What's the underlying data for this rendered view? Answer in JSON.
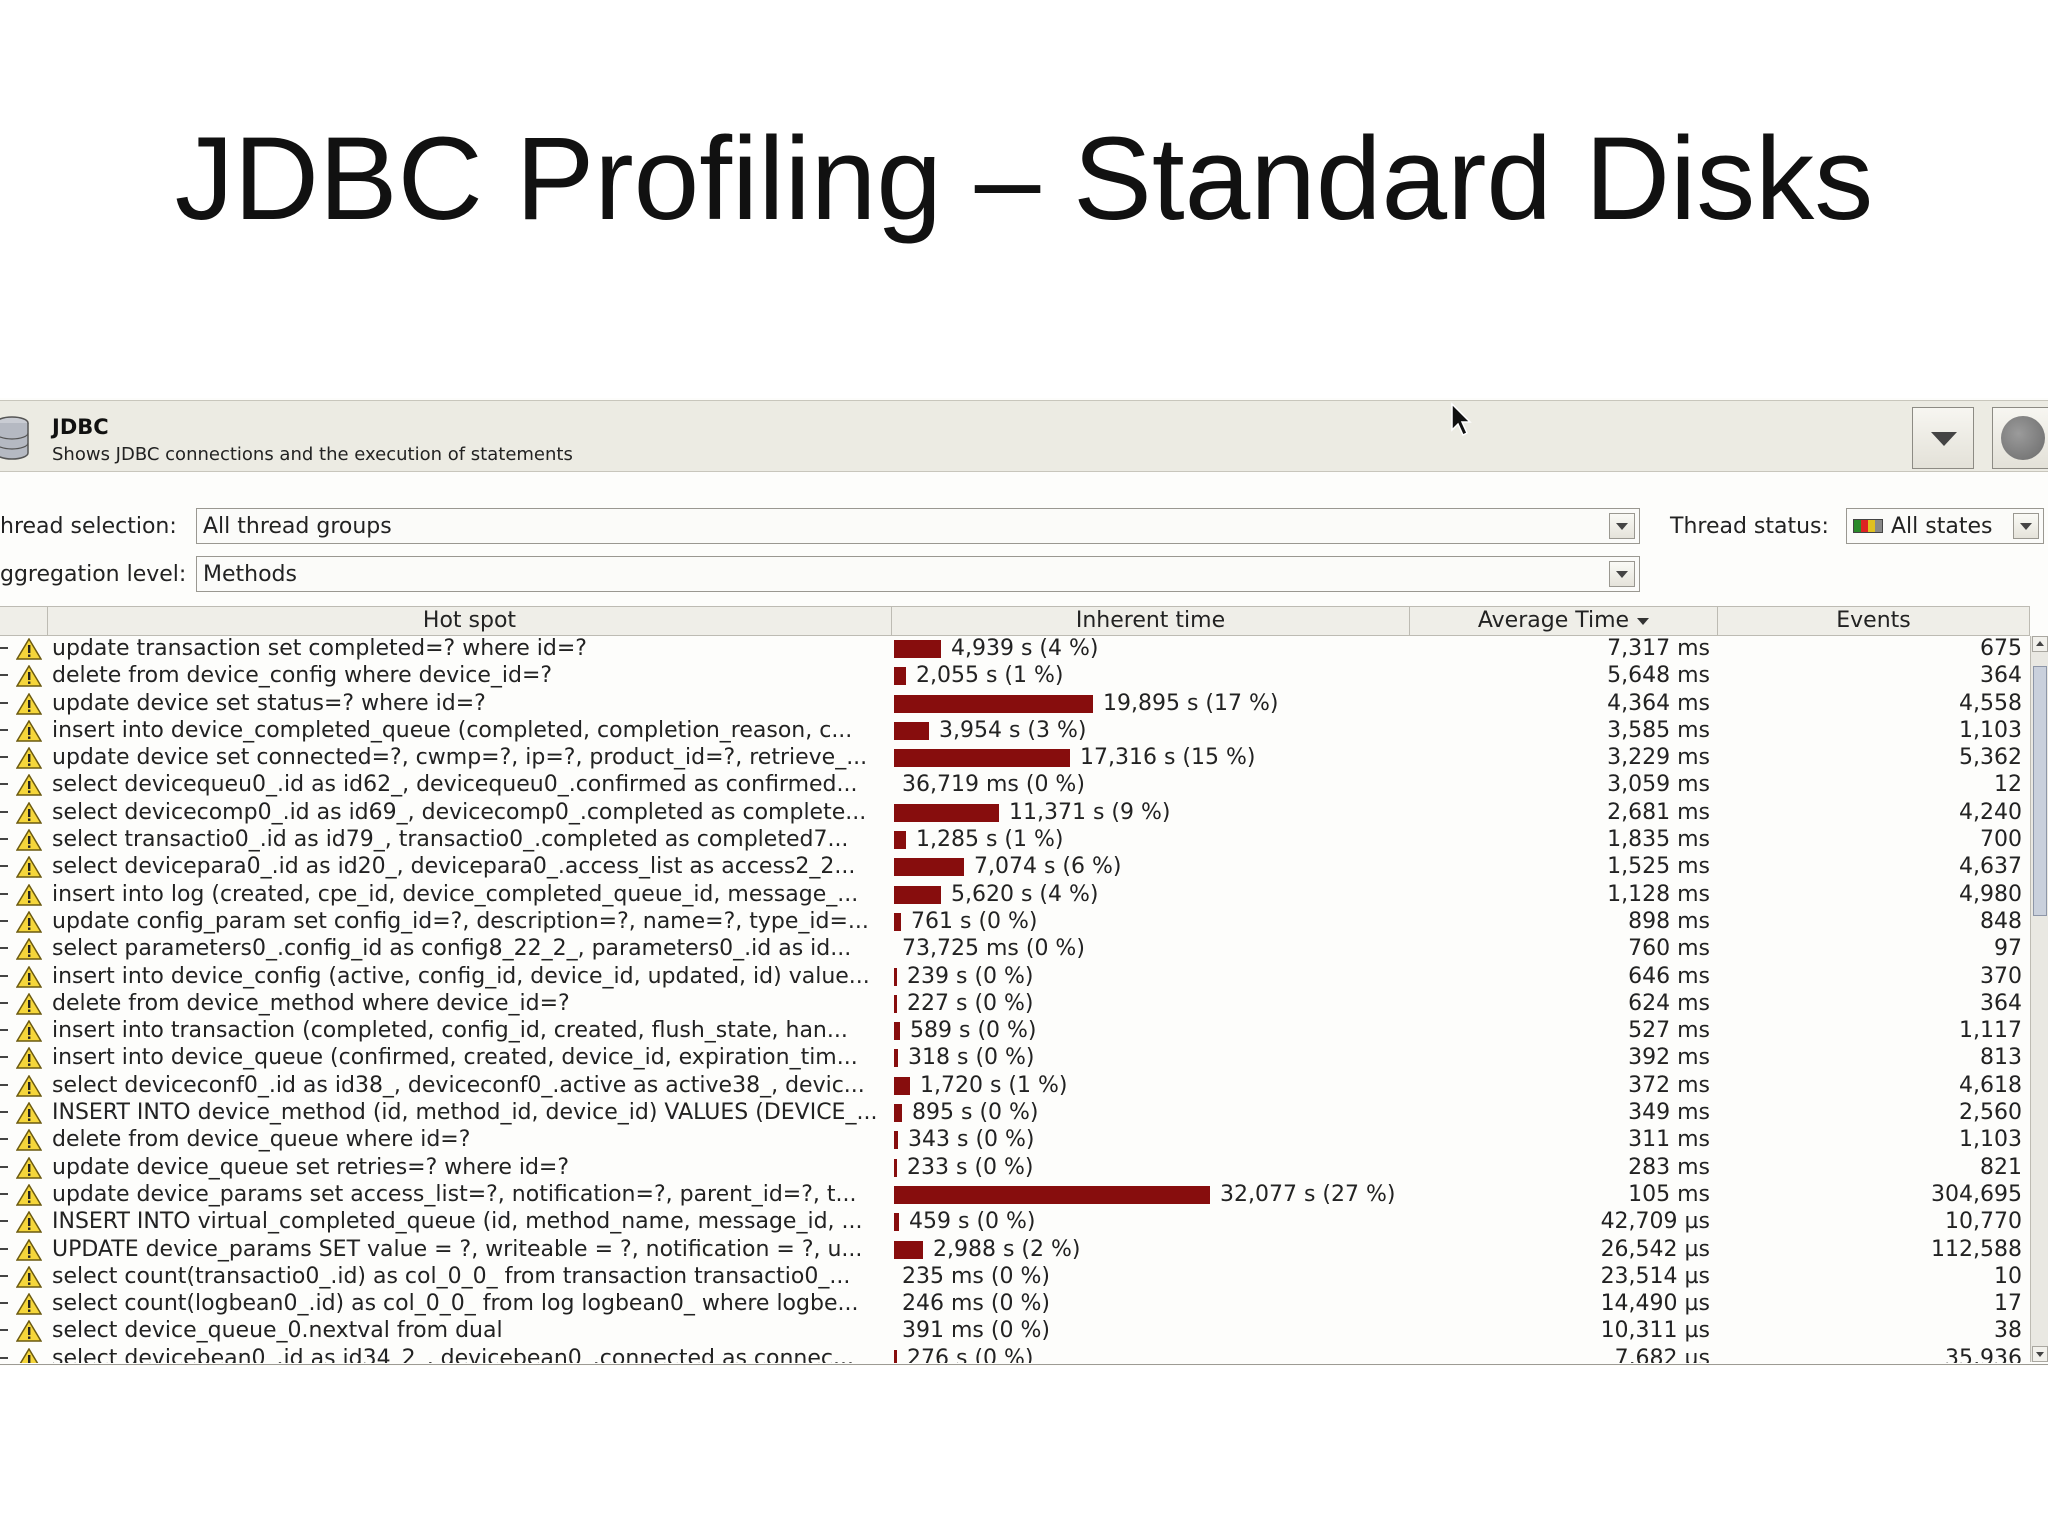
{
  "slide": {
    "title": "JDBC Profiling – Standard Disks"
  },
  "header": {
    "title": "JDBC",
    "subtitle": "Shows JDBC connections and the execution of statements",
    "icon": "database-icon"
  },
  "controls": {
    "thread_selection_label": "hread selection:",
    "thread_selection_value": "All thread groups",
    "thread_status_label": "Thread status:",
    "thread_status_value": "All states",
    "aggregation_label": "ggregation level:",
    "aggregation_value": "Methods"
  },
  "table": {
    "columns": {
      "hotspot": "Hot spot",
      "inherent": "Inherent time",
      "average": "Average Time",
      "events": "Events"
    },
    "sort_column": "Average Time",
    "sort_direction": "descending",
    "bar_color": "#870d0d",
    "rows": [
      {
        "hotspot": "update transaction set completed=? where id=?",
        "inherent": "4,939 s (4 %)",
        "pct": 4,
        "avg": "7,317 ms",
        "events": "675"
      },
      {
        "hotspot": "delete from device_config where device_id=?",
        "inherent": "2,055 s (1 %)",
        "pct": 1,
        "avg": "5,648 ms",
        "events": "364"
      },
      {
        "hotspot": "update device set status=? where id=?",
        "inherent": "19,895 s (17 %)",
        "pct": 17,
        "avg": "4,364 ms",
        "events": "4,558"
      },
      {
        "hotspot": "insert into device_completed_queue (completed, completion_reason, c...",
        "inherent": "3,954 s (3 %)",
        "pct": 3,
        "avg": "3,585 ms",
        "events": "1,103"
      },
      {
        "hotspot": "update device set connected=?, cwmp=?, ip=?, product_id=?, retrieve_...",
        "inherent": "17,316 s (15 %)",
        "pct": 15,
        "avg": "3,229 ms",
        "events": "5,362"
      },
      {
        "hotspot": "select devicequeu0_.id as id62_, devicequeu0_.confirmed as confirmed...",
        "inherent": "36,719 ms (0 %)",
        "pct": 0,
        "avg": "3,059 ms",
        "events": "12"
      },
      {
        "hotspot": "select devicecomp0_.id as id69_, devicecomp0_.completed as complete...",
        "inherent": "11,371 s (9 %)",
        "pct": 9,
        "avg": "2,681 ms",
        "events": "4,240"
      },
      {
        "hotspot": "select transactio0_.id as id79_, transactio0_.completed as completed7...",
        "inherent": "1,285 s (1 %)",
        "pct": 1,
        "avg": "1,835 ms",
        "events": "700"
      },
      {
        "hotspot": "select devicepara0_.id as id20_, devicepara0_.access_list as access2_2...",
        "inherent": "7,074 s (6 %)",
        "pct": 6,
        "avg": "1,525 ms",
        "events": "4,637"
      },
      {
        "hotspot": "insert into log (created, cpe_id, device_completed_queue_id, message_...",
        "inherent": "5,620 s (4 %)",
        "pct": 4,
        "avg": "1,128 ms",
        "events": "4,980"
      },
      {
        "hotspot": "update config_param set config_id=?, description=?, name=?, type_id=...",
        "inherent": "761 s (0 %)",
        "pct": 0.6,
        "avg": "898 ms",
        "events": "848"
      },
      {
        "hotspot": "select parameters0_.config_id as config8_22_2_, parameters0_.id as id...",
        "inherent": "73,725 ms (0 %)",
        "pct": 0,
        "avg": "760 ms",
        "events": "97"
      },
      {
        "hotspot": "insert into device_config (active, config_id, device_id, updated, id) value...",
        "inherent": "239 s (0 %)",
        "pct": 0.2,
        "avg": "646 ms",
        "events": "370"
      },
      {
        "hotspot": "delete from device_method where device_id=?",
        "inherent": "227 s (0 %)",
        "pct": 0.2,
        "avg": "624 ms",
        "events": "364"
      },
      {
        "hotspot": "insert into transaction (completed, config_id, created, flush_state, han...",
        "inherent": "589 s (0 %)",
        "pct": 0.5,
        "avg": "527 ms",
        "events": "1,117"
      },
      {
        "hotspot": "insert into device_queue (confirmed, created, device_id, expiration_tim...",
        "inherent": "318 s (0 %)",
        "pct": 0.3,
        "avg": "392 ms",
        "events": "813"
      },
      {
        "hotspot": "select deviceconf0_.id as id38_, deviceconf0_.active as active38_, devic...",
        "inherent": "1,720 s (1 %)",
        "pct": 1.4,
        "avg": "372 ms",
        "events": "4,618"
      },
      {
        "hotspot": "INSERT INTO device_method (id, method_id, device_id) VALUES (DEVICE_...",
        "inherent": "895 s (0 %)",
        "pct": 0.7,
        "avg": "349 ms",
        "events": "2,560"
      },
      {
        "hotspot": "delete from device_queue where id=?",
        "inherent": "343 s (0 %)",
        "pct": 0.3,
        "avg": "311 ms",
        "events": "1,103"
      },
      {
        "hotspot": "update device_queue set retries=? where id=?",
        "inherent": "233 s (0 %)",
        "pct": 0.2,
        "avg": "283 ms",
        "events": "821"
      },
      {
        "hotspot": "update device_params set access_list=?, notification=?, parent_id=?, t...",
        "inherent": "32,077 s (27 %)",
        "pct": 27,
        "avg": "105 ms",
        "events": "304,695"
      },
      {
        "hotspot": "INSERT INTO virtual_completed_queue (id, method_name, message_id, ...",
        "inherent": "459 s (0 %)",
        "pct": 0.4,
        "avg": "42,709 µs",
        "events": "10,770"
      },
      {
        "hotspot": "UPDATE device_params SET value = ?, writeable = ?, notification = ?, u...",
        "inherent": "2,988 s (2 %)",
        "pct": 2.5,
        "avg": "26,542 µs",
        "events": "112,588"
      },
      {
        "hotspot": "select count(transactio0_.id) as col_0_0_ from transaction transactio0_...",
        "inherent": "235 ms (0 %)",
        "pct": 0,
        "avg": "23,514 µs",
        "events": "10"
      },
      {
        "hotspot": "select count(logbean0_.id) as col_0_0_ from log logbean0_ where logbe...",
        "inherent": "246 ms (0 %)",
        "pct": 0,
        "avg": "14,490 µs",
        "events": "17"
      },
      {
        "hotspot": "select device_queue_0.nextval from dual",
        "inherent": "391 ms (0 %)",
        "pct": 0,
        "avg": "10,311 µs",
        "events": "38"
      },
      {
        "hotspot": "select devicebean0_.id as id34_2_, devicebean0_.connected as connec...",
        "inherent": "276 s (0 %)",
        "pct": 0.2,
        "avg": "7,682 µs",
        "events": "35,936"
      }
    ]
  }
}
